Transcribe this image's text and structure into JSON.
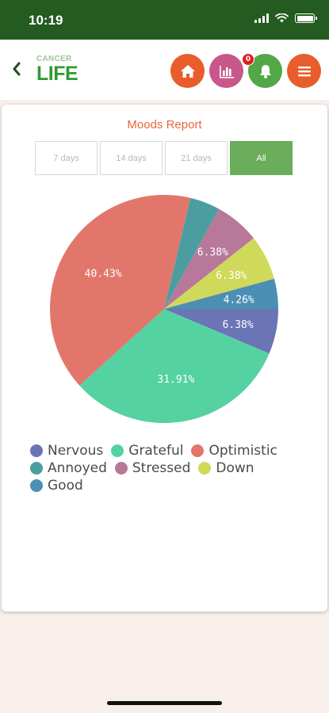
{
  "status_bar": {
    "time": "10:19"
  },
  "header": {
    "logo_top": "CANCER",
    "logo_bottom": "LIFE",
    "notification_count": "0"
  },
  "report": {
    "title": "Moods Report",
    "tabs": [
      {
        "label": "7 days",
        "active": false
      },
      {
        "label": "14 days",
        "active": false
      },
      {
        "label": "21 days",
        "active": false
      },
      {
        "label": "All",
        "active": true
      }
    ]
  },
  "chart_data": {
    "type": "pie",
    "slices": [
      {
        "name": "Nervous",
        "value": 6.38,
        "label": "6.38%",
        "color": "#6b74b4"
      },
      {
        "name": "Grateful",
        "value": 31.91,
        "label": "31.91%",
        "color": "#54d2a1"
      },
      {
        "name": "Optimistic",
        "value": 40.43,
        "label": "40.43%",
        "color": "#e2766b"
      },
      {
        "name": "Annoyed",
        "value": 4.26,
        "label": "",
        "color": "#4a9ea0"
      },
      {
        "name": "Stressed",
        "value": 6.38,
        "label": "6.38%",
        "color": "#b7789a"
      },
      {
        "name": "Down",
        "value": 6.38,
        "label": "6.38%",
        "color": "#cfd95a"
      },
      {
        "name": "Good",
        "value": 4.26,
        "label": "4.26%",
        "color": "#4b8fb5"
      }
    ],
    "legend": {
      "rows": [
        [
          "Nervous",
          "Grateful",
          "Optimistic"
        ],
        [
          "Annoyed",
          "Stressed",
          "Down"
        ],
        [
          "Good"
        ]
      ]
    }
  }
}
